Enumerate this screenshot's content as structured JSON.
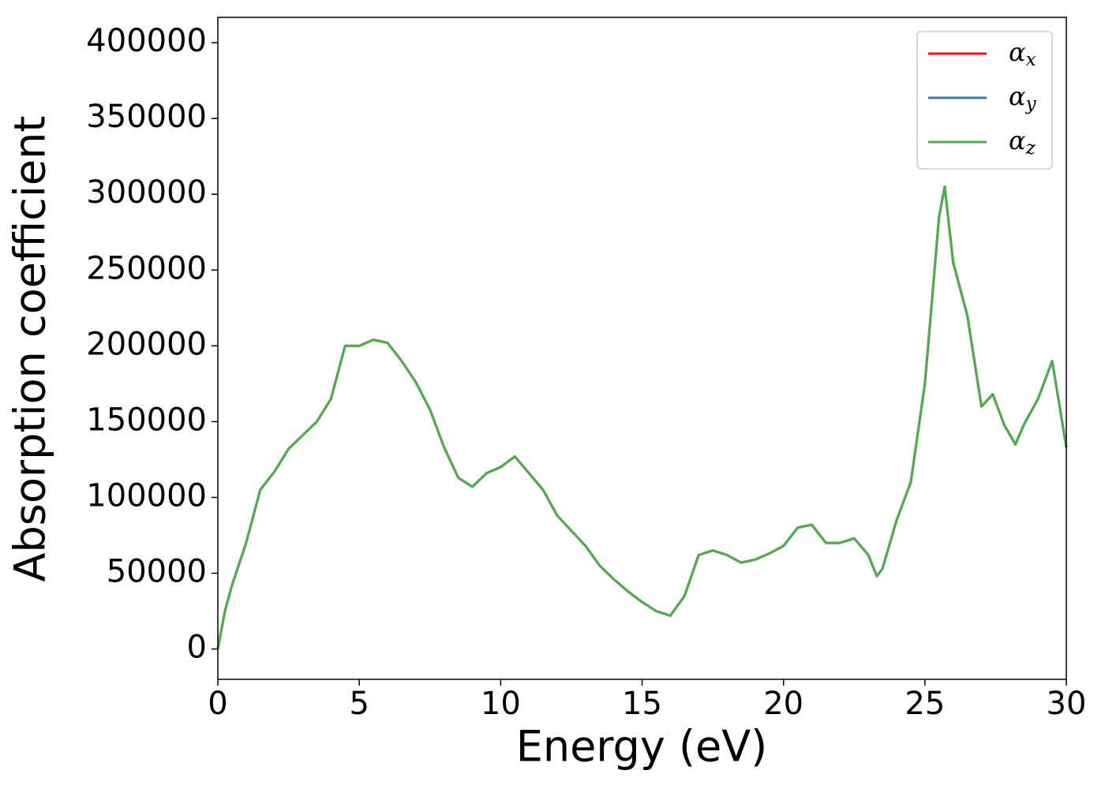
{
  "chart_data": {
    "type": "line",
    "xlabel": "Energy (eV)",
    "ylabel": "Absorption coefficient",
    "x": [
      0,
      0.25,
      0.5,
      1.0,
      1.5,
      2.0,
      2.5,
      3.0,
      3.5,
      4.0,
      4.5,
      5.0,
      5.5,
      6.0,
      6.5,
      7.0,
      7.5,
      8.0,
      8.5,
      9.0,
      9.5,
      10.0,
      10.5,
      11.0,
      11.5,
      12.0,
      12.5,
      13.0,
      13.5,
      14.0,
      14.5,
      15.0,
      15.5,
      16.0,
      16.5,
      17.0,
      17.5,
      18.0,
      18.5,
      19.0,
      19.5,
      20.0,
      20.5,
      21.0,
      21.5,
      22.0,
      22.5,
      23.0,
      23.3,
      23.5,
      24.0,
      24.5,
      25.0,
      25.5,
      25.7,
      26.0,
      26.5,
      27.0,
      27.4,
      27.8,
      28.2,
      28.5,
      29.0,
      29.5,
      30.0
    ],
    "series": [
      {
        "name": "αx",
        "color": "#e41a1c",
        "values": [
          0,
          25000,
          42000,
          70000,
          105000,
          117000,
          132000,
          141000,
          150000,
          165000,
          200000,
          200000,
          204000,
          202000,
          190000,
          176000,
          158000,
          133000,
          113000,
          107000,
          116000,
          120000,
          127000,
          116000,
          105000,
          88000,
          78000,
          68000,
          55000,
          46000,
          38000,
          31000,
          25000,
          22000,
          35000,
          62000,
          65000,
          62000,
          57000,
          59000,
          63000,
          68000,
          80000,
          82000,
          70000,
          70000,
          73000,
          62000,
          48000,
          53000,
          85000,
          110000,
          175000,
          285000,
          305000,
          255000,
          220000,
          160000,
          168000,
          148000,
          135000,
          148000,
          165000,
          190000,
          133000
        ]
      },
      {
        "name": "αy",
        "color": "#377eb8",
        "values": [
          0,
          25000,
          42000,
          70000,
          105000,
          117000,
          132000,
          141000,
          150000,
          165000,
          200000,
          200000,
          204000,
          202000,
          190000,
          176000,
          158000,
          133000,
          113000,
          107000,
          116000,
          120000,
          127000,
          116000,
          105000,
          88000,
          78000,
          68000,
          55000,
          46000,
          38000,
          31000,
          25000,
          22000,
          35000,
          62000,
          65000,
          62000,
          57000,
          59000,
          63000,
          68000,
          80000,
          82000,
          70000,
          70000,
          73000,
          62000,
          48000,
          53000,
          85000,
          110000,
          175000,
          285000,
          305000,
          255000,
          220000,
          160000,
          168000,
          148000,
          135000,
          148000,
          165000,
          190000,
          133000
        ]
      },
      {
        "name": "αz",
        "color": "#4daf4a",
        "values": [
          0,
          25000,
          42000,
          70000,
          105000,
          117000,
          132000,
          141000,
          150000,
          165000,
          200000,
          200000,
          204000,
          202000,
          190000,
          176000,
          158000,
          133000,
          113000,
          107000,
          116000,
          120000,
          127000,
          116000,
          105000,
          88000,
          78000,
          68000,
          55000,
          46000,
          38000,
          31000,
          25000,
          22000,
          35000,
          62000,
          65000,
          62000,
          57000,
          59000,
          63000,
          68000,
          80000,
          82000,
          70000,
          70000,
          73000,
          62000,
          48000,
          53000,
          85000,
          110000,
          175000,
          285000,
          305000,
          255000,
          220000,
          160000,
          168000,
          148000,
          135000,
          148000,
          165000,
          190000,
          133000
        ]
      }
    ],
    "xlim": [
      0,
      30
    ],
    "xticks": [
      0,
      5,
      10,
      15,
      20,
      25,
      30
    ],
    "ylim": [
      -20000,
      416700
    ],
    "yticks": [
      0,
      50000,
      100000,
      150000,
      200000,
      250000,
      300000,
      350000,
      400000
    ],
    "legend": "upper right",
    "grid": false
  }
}
